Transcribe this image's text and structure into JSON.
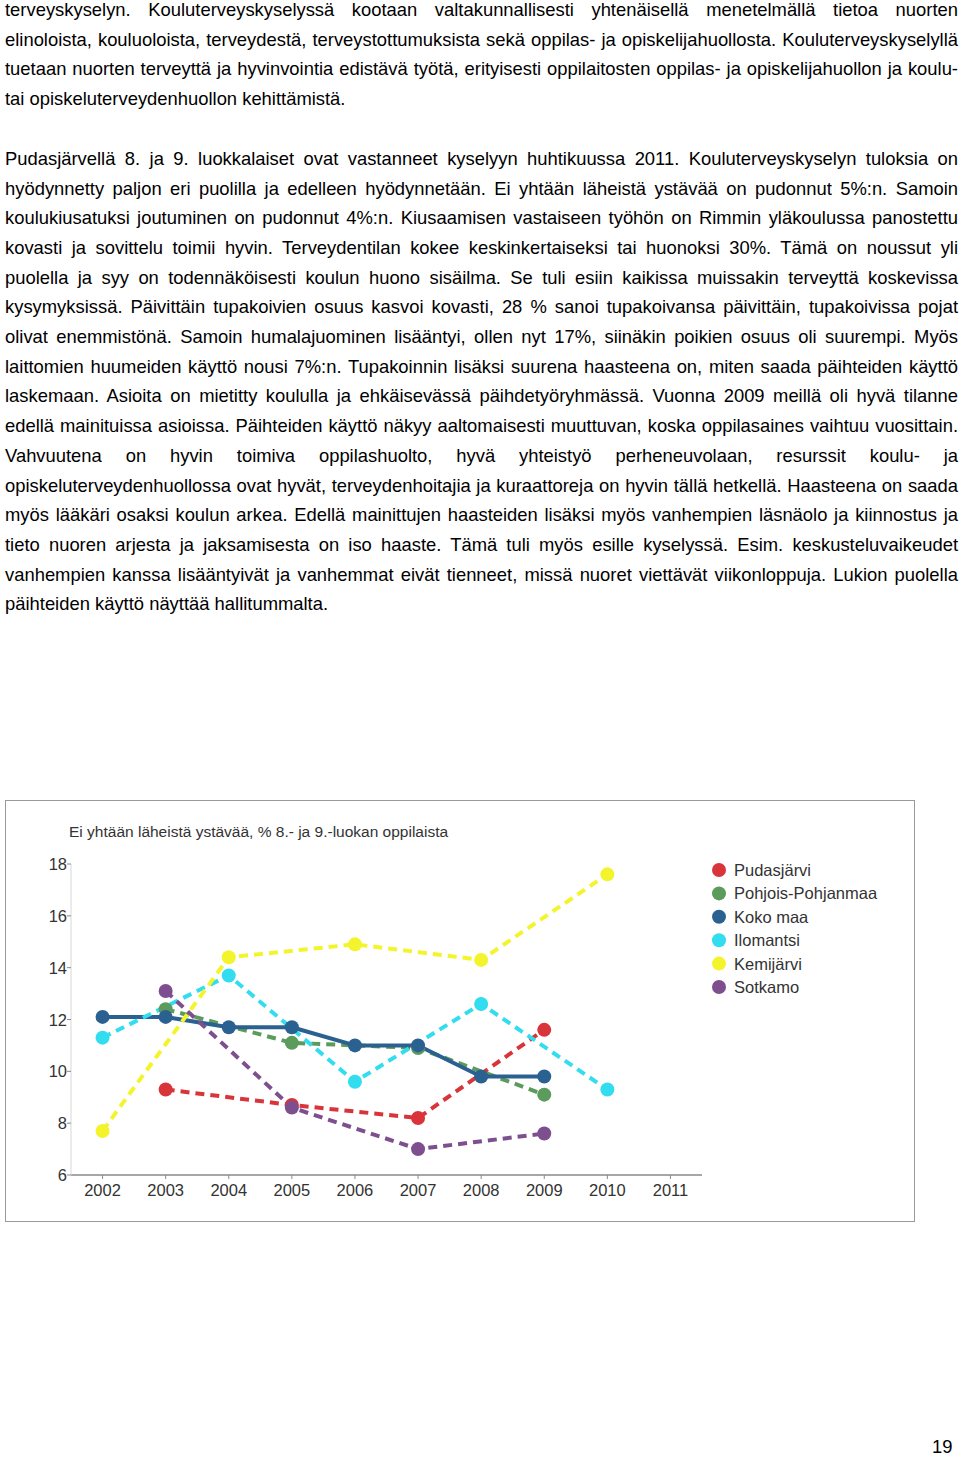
{
  "document": {
    "paragraphs": [
      "terveyskyselyn. Kouluterveyskyselyssä kootaan valtakunnallisesti yhtenäisellä menetelmällä tietoa nuorten elinoloista, kouluoloista, terveydestä, terveystottumuksista sekä oppilas- ja opiskelijahuollosta. Kouluterveyskyselyllä tuetaan nuorten terveyttä ja hyvinvointia edistävä työtä, erityisesti oppilaitosten oppilas- ja opiskelijahuollon ja koulu- tai opiskeluterveydenhuollon kehittämistä.",
      "Pudasjärvellä 8. ja 9. luokkalaiset ovat vastanneet kyselyyn huhtikuussa 2011. Kouluterveyskyselyn tuloksia on hyödynnetty paljon eri puolilla ja edelleen hyödynnetään. Ei yhtään läheistä ystävää on pudonnut 5%:n. Samoin koulukiusatuksi joutuminen on pudonnut 4%:n. Kiusaamisen vastaiseen työhön on Rimmin yläkoulussa panostettu kovasti ja sovittelu toimii hyvin. Terveydentilan kokee keskinkertaiseksi tai huonoksi 30%. Tämä on noussut yli puolella ja syy on todennäköisesti koulun huono sisäilma. Se tuli esiin kaikissa muissakin terveyttä koskevissa kysymyksissä. Päivittäin tupakoivien osuus kasvoi kovasti, 28 % sanoi tupakoivansa päivittäin, tupakoivissa pojat olivat enemmistönä. Samoin humalajuominen lisääntyi, ollen nyt 17%, siinäkin poikien osuus oli suurempi. Myös laittomien huumeiden käyttö nousi 7%:n. Tupakoinnin lisäksi suurena haasteena on, miten saada päihteiden käyttö laskemaan. Asioita on mietitty koululla ja ehkäisevässä päihdetyöryhmässä. Vuonna 2009 meillä oli hyvä tilanne edellä mainituissa asioissa. Päihteiden käyttö näkyy aaltomaisesti muuttuvan, koska oppilasaines vaihtuu vuosittain. Vahvuutena on hyvin toimiva oppilashuolto, hyvä yhteistyö perheneuvolaan, resurssit koulu- ja opiskeluterveydenhuollossa ovat hyvät, terveydenhoitajia ja kuraattoreja on hyvin tällä hetkellä. Haasteena on saada myös lääkäri osaksi koulun arkea. Edellä mainittujen haasteiden lisäksi myös vanhempien läsnäolo ja kiinnostus ja tieto nuoren arjesta ja jaksamisesta on iso haaste. Tämä tuli myös esille kyselyssä. Esim. keskusteluvaikeudet vanhempien kanssa lisääntyivät ja vanhemmat eivät tienneet, missä nuoret viettävät viikonloppuja. Lukion puolella päihteiden käyttö näyttää hallitummalta."
    ],
    "page_number": "19"
  },
  "chart_data": {
    "type": "line",
    "title": "Ei yhtään läheistä ystävää, % 8.- ja 9.-luokan oppilaista",
    "xlim": [
      2001.5,
      2011.5
    ],
    "xticks": [
      2002,
      2003,
      2004,
      2005,
      2006,
      2007,
      2008,
      2009,
      2010,
      2011
    ],
    "ylim": [
      6,
      18
    ],
    "yticks": [
      6,
      8,
      10,
      12,
      14,
      16,
      18
    ],
    "grid": false,
    "legend": "right",
    "marker": "circle",
    "series": [
      {
        "name": "Pudasjärvi",
        "color": "#d9343a",
        "line_style": "dashed",
        "x": [
          2003,
          2005,
          2007,
          2009
        ],
        "values": [
          9.3,
          8.7,
          8.2,
          11.6
        ]
      },
      {
        "name": "Pohjois-Pohjanmaa",
        "color": "#5b9b5b",
        "line_style": "dashed",
        "x": [
          2003,
          2005,
          2007,
          2009
        ],
        "values": [
          12.4,
          11.1,
          10.9,
          9.1
        ]
      },
      {
        "name": "Koko maa",
        "color": "#2b6190",
        "line_style": "solid",
        "x": [
          2002,
          2003,
          2004,
          2005,
          2006,
          2007,
          2008,
          2009
        ],
        "values": [
          12.1,
          12.1,
          11.7,
          11.7,
          11.0,
          11.0,
          9.8,
          9.8
        ]
      },
      {
        "name": "Ilomantsi",
        "color": "#33ddf0",
        "line_style": "dashed",
        "x": [
          2002,
          2004,
          2006,
          2008,
          2010
        ],
        "values": [
          11.3,
          13.7,
          9.6,
          12.6,
          9.3
        ]
      },
      {
        "name": "Kemijärvi",
        "color": "#f4f42c",
        "line_style": "dashed",
        "x": [
          2002,
          2004,
          2006,
          2008,
          2010
        ],
        "values": [
          7.7,
          14.4,
          14.9,
          14.3,
          17.6
        ]
      },
      {
        "name": "Sotkamo",
        "color": "#7d4f8f",
        "line_style": "dashed",
        "x": [
          2003,
          2005,
          2007,
          2009
        ],
        "values": [
          13.1,
          8.6,
          7.0,
          7.6
        ]
      }
    ]
  }
}
